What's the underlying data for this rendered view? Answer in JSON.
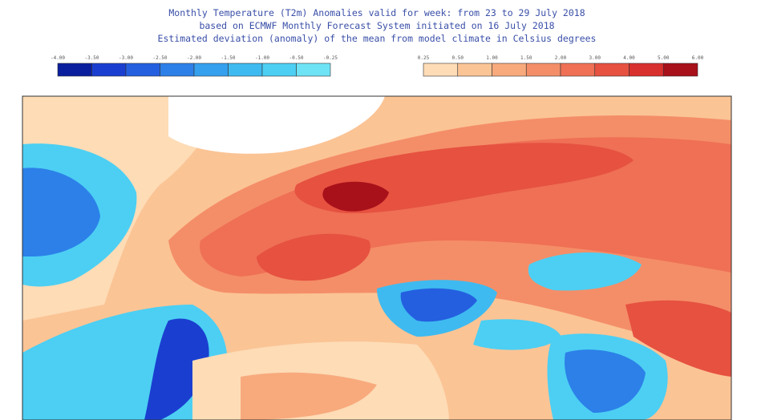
{
  "header": {
    "lines": [
      "Monthly Temperature (T2m) Anomalies valid for week: from 23 to 29 July 2018",
      "based on ECMWF Monthly Forecast System initiated on 16 July 2018",
      "Estimated deviation (anomaly) of the mean from model climate in Celsius degrees"
    ]
  },
  "legend": {
    "negative": {
      "labels": [
        "-4.00",
        "-3.50",
        "-3.00",
        "-2.50",
        "-2.00",
        "-1.50",
        "-1.00",
        "-0.50",
        "-0.25"
      ],
      "colors": [
        "#0a1f9e",
        "#1a3fd0",
        "#245fe0",
        "#2c80e8",
        "#34a0ee",
        "#3ebaf0",
        "#4ccff3",
        "#6fe3f6"
      ]
    },
    "positive": {
      "labels": [
        "0.25",
        "0.50",
        "1.00",
        "1.50",
        "2.00",
        "3.00",
        "4.00",
        "5.00",
        "6.00"
      ],
      "colors": [
        "#fddcb6",
        "#fbc495",
        "#f8aa7d",
        "#f48e68",
        "#ef7055",
        "#e65140",
        "#d8302e",
        "#a8101a"
      ]
    }
  }
}
